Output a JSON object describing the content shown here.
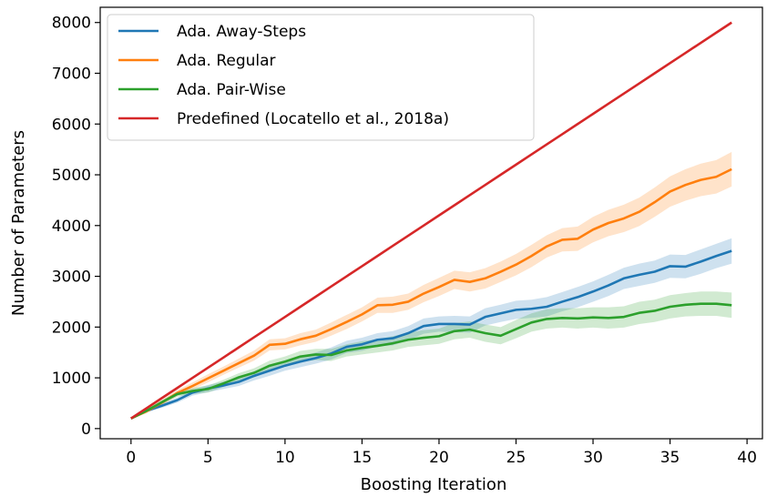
{
  "chart_data": {
    "type": "line",
    "title": "",
    "xlabel": "Boosting Iteration",
    "ylabel": "Number of Parameters",
    "xlim": [
      -2,
      41
    ],
    "ylim": [
      -200,
      8300
    ],
    "xticks": [
      0,
      5,
      10,
      15,
      20,
      25,
      30,
      35,
      40
    ],
    "yticks": [
      0,
      1000,
      2000,
      3000,
      4000,
      5000,
      6000,
      7000,
      8000
    ],
    "grid": false,
    "legend_position": "upper-left",
    "x": [
      0,
      1,
      2,
      3,
      4,
      5,
      6,
      7,
      8,
      9,
      10,
      11,
      12,
      13,
      14,
      15,
      16,
      17,
      18,
      19,
      20,
      21,
      22,
      23,
      24,
      25,
      26,
      27,
      28,
      29,
      30,
      31,
      32,
      33,
      34,
      35,
      36,
      37,
      38,
      39
    ],
    "series": [
      {
        "name": "Ada. Away-Steps",
        "color": "#1f77b4",
        "values": [
          200,
          350,
          450,
          560,
          710,
          790,
          850,
          920,
          1040,
          1140,
          1240,
          1320,
          1390,
          1480,
          1610,
          1660,
          1750,
          1780,
          1880,
          2020,
          2060,
          2060,
          2050,
          2200,
          2270,
          2340,
          2360,
          2400,
          2500,
          2590,
          2700,
          2820,
          2960,
          3030,
          3090,
          3200,
          3190,
          3290,
          3400,
          3500
        ],
        "band": [
          0,
          30,
          40,
          50,
          60,
          70,
          70,
          80,
          90,
          100,
          100,
          110,
          110,
          120,
          120,
          130,
          130,
          140,
          140,
          150,
          150,
          160,
          160,
          170,
          170,
          180,
          180,
          190,
          190,
          200,
          200,
          210,
          210,
          220,
          220,
          230,
          230,
          240,
          240,
          250
        ]
      },
      {
        "name": "Ada. Regular",
        "color": "#ff7f0e",
        "values": [
          200,
          340,
          510,
          700,
          840,
          990,
          1140,
          1290,
          1440,
          1650,
          1670,
          1760,
          1830,
          1960,
          2100,
          2250,
          2430,
          2440,
          2500,
          2660,
          2790,
          2930,
          2890,
          2960,
          3090,
          3230,
          3400,
          3590,
          3720,
          3740,
          3920,
          4050,
          4140,
          4270,
          4460,
          4670,
          4800,
          4900,
          4960,
          5110
        ],
        "band": [
          0,
          40,
          50,
          60,
          70,
          80,
          80,
          90,
          100,
          110,
          110,
          120,
          120,
          130,
          140,
          140,
          150,
          160,
          160,
          170,
          180,
          180,
          190,
          200,
          200,
          210,
          220,
          220,
          230,
          240,
          250,
          260,
          270,
          280,
          290,
          300,
          310,
          320,
          330,
          340
        ]
      },
      {
        "name": "Ada. Pair-Wise",
        "color": "#2ca02c",
        "values": [
          200,
          350,
          520,
          680,
          740,
          780,
          890,
          1010,
          1100,
          1240,
          1320,
          1420,
          1460,
          1450,
          1540,
          1590,
          1630,
          1680,
          1750,
          1790,
          1820,
          1920,
          1950,
          1880,
          1830,
          1960,
          2090,
          2160,
          2180,
          2170,
          2190,
          2180,
          2200,
          2280,
          2320,
          2400,
          2440,
          2460,
          2460,
          2430
        ],
        "band": [
          0,
          30,
          40,
          50,
          60,
          70,
          70,
          80,
          90,
          100,
          100,
          110,
          110,
          120,
          120,
          130,
          130,
          140,
          140,
          150,
          150,
          160,
          160,
          170,
          170,
          180,
          180,
          190,
          190,
          200,
          200,
          210,
          210,
          220,
          220,
          230,
          230,
          240,
          240,
          250
        ]
      },
      {
        "name": "Predefined (Locatello et al., 2018a)",
        "color": "#d62728",
        "values": [
          200,
          400,
          600,
          800,
          1000,
          1200,
          1400,
          1600,
          1800,
          2000,
          2200,
          2400,
          2600,
          2800,
          3000,
          3200,
          3400,
          3600,
          3800,
          4000,
          4200,
          4400,
          4600,
          4800,
          5000,
          5200,
          5400,
          5600,
          5800,
          6000,
          6200,
          6400,
          6600,
          6800,
          7000,
          7200,
          7400,
          7600,
          7800,
          8000
        ]
      }
    ]
  }
}
